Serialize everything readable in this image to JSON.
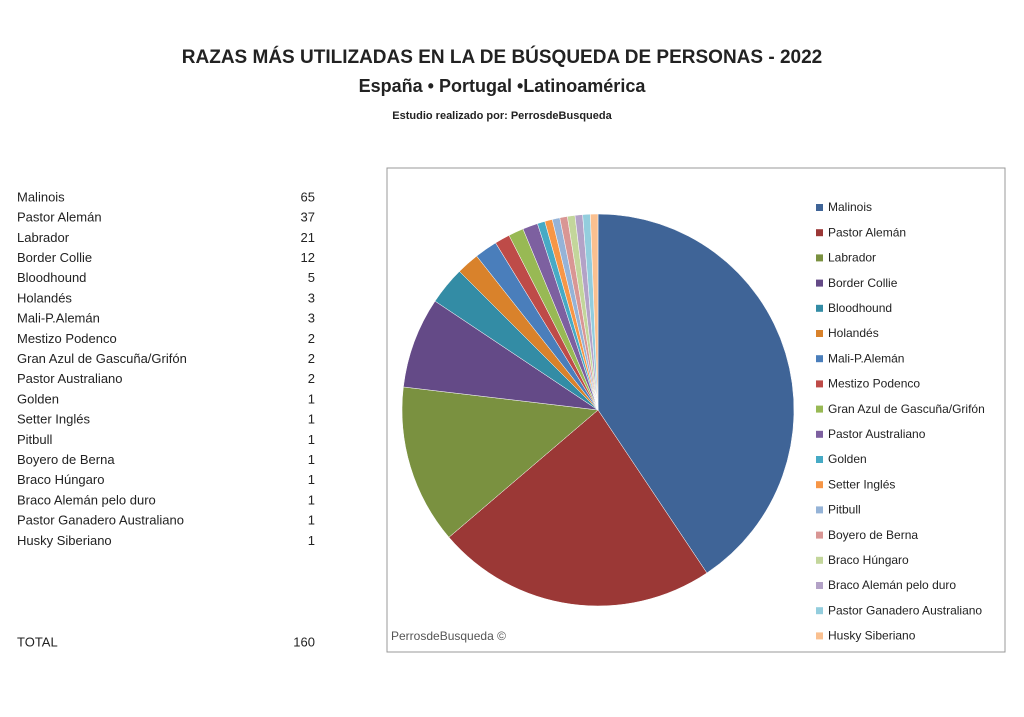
{
  "chart_data": {
    "type": "pie",
    "title": "RAZAS MÁS UTILIZADAS EN LA DE BÚSQUEDA DE PERSONAS - 2022",
    "subtitle": "España • Portugal •Latinoamérica",
    "byline": "Estudio realizado por: PerrosdeBusqueda",
    "watermark": "PerrosdeBusqueda ©",
    "categories": [
      "Malinois",
      "Pastor Alemán",
      "Labrador",
      "Border Collie",
      "Bloodhound",
      "Holandés",
      "Mali-P.Alemán",
      "Mestizo Podenco",
      "Gran Azul de Gascuña/Grifón",
      "Pastor Australiano",
      "Golden",
      "Setter Inglés",
      "Pitbull",
      "Boyero de Berna",
      "Braco Húngaro",
      "Braco Alemán pelo duro",
      "Pastor Ganadero Australiano",
      "Husky Siberiano"
    ],
    "values": [
      65,
      37,
      21,
      12,
      5,
      3,
      3,
      2,
      2,
      2,
      1,
      1,
      1,
      1,
      1,
      1,
      1,
      1
    ],
    "colors": [
      "#3F6497",
      "#9B3836",
      "#7A9140",
      "#644A87",
      "#338CA5",
      "#D9822B",
      "#4A7EBB",
      "#BE4B48",
      "#98B954",
      "#7D60A0",
      "#46AAC5",
      "#F79646",
      "#95B3D7",
      "#D99694",
      "#C3D69B",
      "#B3A2C7",
      "#93CDDD",
      "#FAC090"
    ],
    "total_label": "TOTAL",
    "total": 160
  }
}
